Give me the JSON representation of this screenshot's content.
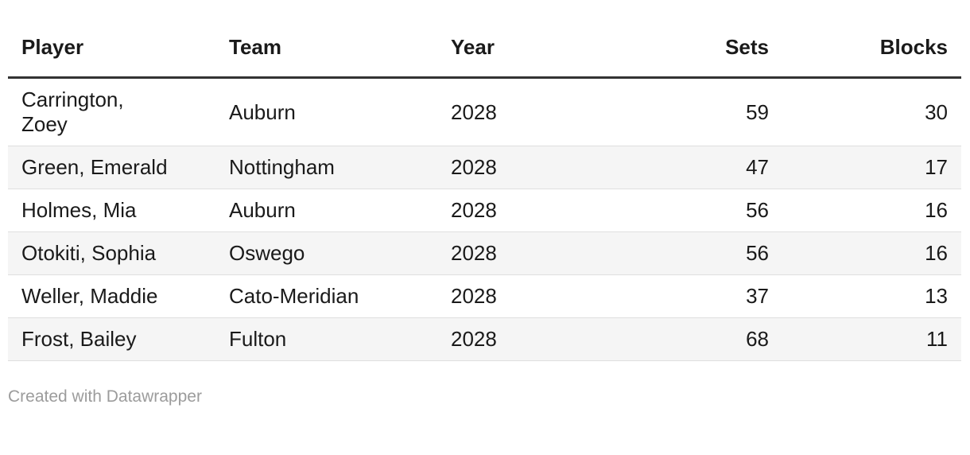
{
  "chart_data": {
    "type": "table",
    "title": "",
    "columns": [
      {
        "key": "player",
        "label": "Player",
        "align": "left"
      },
      {
        "key": "team",
        "label": "Team",
        "align": "left"
      },
      {
        "key": "year",
        "label": "Year",
        "align": "left"
      },
      {
        "key": "sets",
        "label": "Sets",
        "align": "right"
      },
      {
        "key": "blocks",
        "label": "Blocks",
        "align": "right"
      }
    ],
    "rows": [
      [
        "Carrington,\nZoey",
        "Auburn",
        "2028",
        "59",
        "30"
      ],
      [
        "Green, Emerald",
        "Nottingham",
        "2028",
        "47",
        "17"
      ],
      [
        "Holmes, Mia",
        "Auburn",
        "2028",
        "56",
        "16"
      ],
      [
        "Otokiti, Sophia",
        "Oswego",
        "2028",
        "56",
        "16"
      ],
      [
        "Weller, Maddie",
        "Cato-Meridian",
        "2028",
        "37",
        "13"
      ],
      [
        "Frost, Bailey",
        "Fulton",
        "2028",
        "68",
        "11"
      ]
    ],
    "zebra_striping": true,
    "grid": "horizontal-only",
    "legend_position": "none"
  },
  "footer": {
    "credit_label": "Created with Datawrapper"
  },
  "colors": {
    "background": "#ffffff",
    "text": "#1a1a1a",
    "header_border": "#333333",
    "row_border": "#dfdfdf",
    "stripe": "#f5f5f5",
    "credit": "#9c9c9c"
  }
}
